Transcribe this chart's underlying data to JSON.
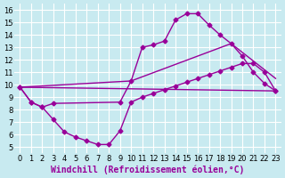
{
  "background_color": "#c8eaf0",
  "grid_color": "#ffffff",
  "line_color": "#990099",
  "xlabel": "Windchill (Refroidissement éolien,°C)",
  "xlim": [
    -0.5,
    23.5
  ],
  "ylim": [
    4.5,
    16.5
  ],
  "yticks": [
    5,
    6,
    7,
    8,
    9,
    10,
    11,
    12,
    13,
    14,
    15,
    16
  ],
  "xticks": [
    0,
    1,
    2,
    3,
    4,
    5,
    6,
    7,
    8,
    9,
    10,
    11,
    12,
    13,
    14,
    15,
    16,
    17,
    18,
    19,
    20,
    21,
    22,
    23
  ],
  "line1_x": [
    0,
    1,
    2,
    3,
    9,
    10,
    11,
    12,
    13,
    14,
    15,
    16,
    17,
    18,
    19,
    20,
    21,
    22,
    23
  ],
  "line1_y": [
    9.8,
    8.6,
    8.2,
    8.5,
    8.6,
    10.3,
    13.0,
    13.2,
    13.5,
    15.2,
    15.7,
    15.7,
    14.8,
    14.0,
    13.3,
    12.3,
    11.0,
    10.1,
    9.5
  ],
  "line2_x": [
    0,
    1,
    2,
    3,
    4,
    5,
    6,
    7,
    8,
    9,
    10,
    11,
    12,
    13,
    14,
    15,
    16,
    17,
    18,
    19,
    20,
    21,
    22,
    23
  ],
  "line2_y": [
    9.8,
    8.6,
    8.2,
    7.2,
    6.2,
    5.8,
    5.5,
    5.2,
    5.2,
    6.3,
    8.6,
    9.0,
    9.3,
    9.6,
    9.9,
    10.2,
    10.5,
    10.8,
    11.1,
    11.4,
    11.7,
    11.7,
    11.0,
    9.5
  ],
  "line3_x": [
    0,
    23
  ],
  "line3_y": [
    9.8,
    9.5
  ],
  "line4_x": [
    0,
    10,
    19,
    23
  ],
  "line4_y": [
    9.8,
    10.3,
    13.3,
    10.5
  ],
  "marker_size": 2.5,
  "linewidth": 1.0,
  "tick_fontsize": 6,
  "xlabel_fontsize": 7
}
